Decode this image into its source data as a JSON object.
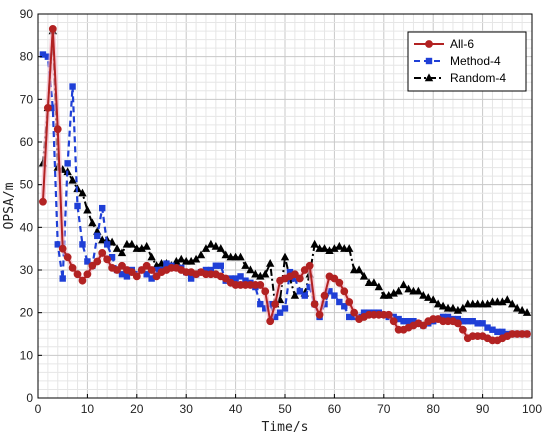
{
  "chart_data": {
    "type": "line",
    "xlabel": "Time/s",
    "ylabel": "OPSA/m",
    "xlim": [
      0,
      100
    ],
    "ylim": [
      0,
      90
    ],
    "xticks": [
      0,
      10,
      20,
      30,
      40,
      50,
      60,
      70,
      80,
      90,
      100
    ],
    "yticks": [
      0,
      10,
      20,
      30,
      40,
      50,
      60,
      70,
      80,
      90
    ],
    "grid": true,
    "legend_position": "top-right",
    "x": [
      1,
      2,
      3,
      4,
      5,
      6,
      7,
      8,
      9,
      10,
      11,
      12,
      13,
      14,
      15,
      16,
      17,
      18,
      19,
      20,
      21,
      22,
      23,
      24,
      25,
      26,
      27,
      28,
      29,
      30,
      31,
      32,
      33,
      34,
      35,
      36,
      37,
      38,
      39,
      40,
      41,
      42,
      43,
      44,
      45,
      46,
      47,
      48,
      49,
      50,
      51,
      52,
      53,
      54,
      55,
      56,
      57,
      58,
      59,
      60,
      61,
      62,
      63,
      64,
      65,
      66,
      67,
      68,
      69,
      70,
      71,
      72,
      73,
      74,
      75,
      76,
      77,
      78,
      79,
      80,
      81,
      82,
      83,
      84,
      85,
      86,
      87,
      88,
      89,
      90,
      91,
      92,
      93,
      94,
      95,
      96,
      97,
      98,
      99
    ],
    "series": [
      {
        "name": "All-6",
        "color": "#b22222",
        "marker": "circle",
        "dash": "solid",
        "values": [
          46,
          68,
          86.5,
          63,
          35,
          33,
          30.5,
          29,
          27.5,
          29,
          31,
          32,
          34,
          32.5,
          30.5,
          30,
          31,
          30,
          29.5,
          28.5,
          30,
          31,
          30,
          28.5,
          29.5,
          30,
          30.5,
          30.5,
          30,
          29.5,
          29.5,
          29,
          29.5,
          29,
          29,
          29,
          28.5,
          28,
          27,
          26.5,
          26.5,
          26.5,
          26.5,
          26.5,
          26.5,
          25,
          18,
          22,
          27.5,
          28,
          28.5,
          29,
          28,
          30,
          31,
          22,
          19.5,
          24,
          28.5,
          28,
          27,
          25,
          22.5,
          20,
          18.5,
          19,
          19.5,
          19.5,
          19.5,
          19.5,
          19.5,
          18,
          16,
          16,
          16.5,
          17,
          17.5,
          17,
          18,
          18.5,
          18.5,
          18,
          18,
          18,
          17.5,
          16,
          14,
          14.5,
          14.5,
          14.5,
          14,
          13.5,
          13.5,
          14,
          14.5,
          15,
          15,
          15,
          15
        ]
      },
      {
        "name": "Method-4",
        "color": "#1f3fd6",
        "marker": "square",
        "dash": "dashed",
        "values": [
          80.5,
          80,
          68,
          36,
          28,
          55,
          73,
          45,
          36,
          32,
          31,
          38,
          44.5,
          36,
          33,
          30,
          29,
          28.5,
          30,
          29,
          30,
          29,
          28,
          30,
          30,
          31.5,
          31,
          30.5,
          30.5,
          29.5,
          28,
          29,
          29.5,
          30,
          30,
          31,
          31,
          27.5,
          28,
          28,
          28.5,
          27.5,
          27,
          26,
          22,
          21,
          22,
          19,
          20,
          21,
          29.5,
          28,
          25,
          24,
          26,
          22,
          19,
          22,
          25,
          24,
          22.5,
          21.5,
          19,
          19,
          19,
          20,
          20,
          20,
          20,
          19.5,
          19,
          19,
          18.5,
          18,
          18,
          18,
          17.5,
          17,
          17.5,
          18,
          18.5,
          19,
          19,
          18.5,
          18.5,
          18,
          18,
          18,
          17.5,
          17.5,
          16.5,
          16,
          15.5,
          15.5,
          15,
          15,
          15,
          15,
          15
        ]
      },
      {
        "name": "Random-4",
        "color": "#000000",
        "marker": "triangle",
        "dash": "dashdot",
        "values": [
          55,
          68,
          86,
          54,
          53.5,
          53,
          51,
          49,
          48,
          44,
          41,
          39,
          37,
          37,
          36.5,
          35,
          34,
          36,
          36,
          35,
          35,
          35.5,
          33,
          31,
          31.5,
          31.5,
          31,
          32,
          32.5,
          32,
          32,
          32.5,
          33.5,
          35,
          36,
          35.5,
          35,
          33.5,
          33,
          33,
          33,
          31,
          30,
          29,
          28.5,
          29,
          31.5,
          22,
          23,
          33,
          28,
          24,
          25,
          24.5,
          29,
          36,
          35,
          35,
          34.5,
          35,
          35.5,
          35,
          35,
          30,
          30,
          28.5,
          27,
          27,
          26,
          24,
          24,
          24.5,
          25,
          26.5,
          25.5,
          25,
          25,
          24,
          23.5,
          23,
          22,
          21.5,
          21,
          21,
          20.5,
          21,
          22,
          22,
          22,
          22,
          22,
          22.5,
          22.5,
          22.5,
          23,
          22,
          21,
          20.5,
          20
        ]
      }
    ]
  }
}
